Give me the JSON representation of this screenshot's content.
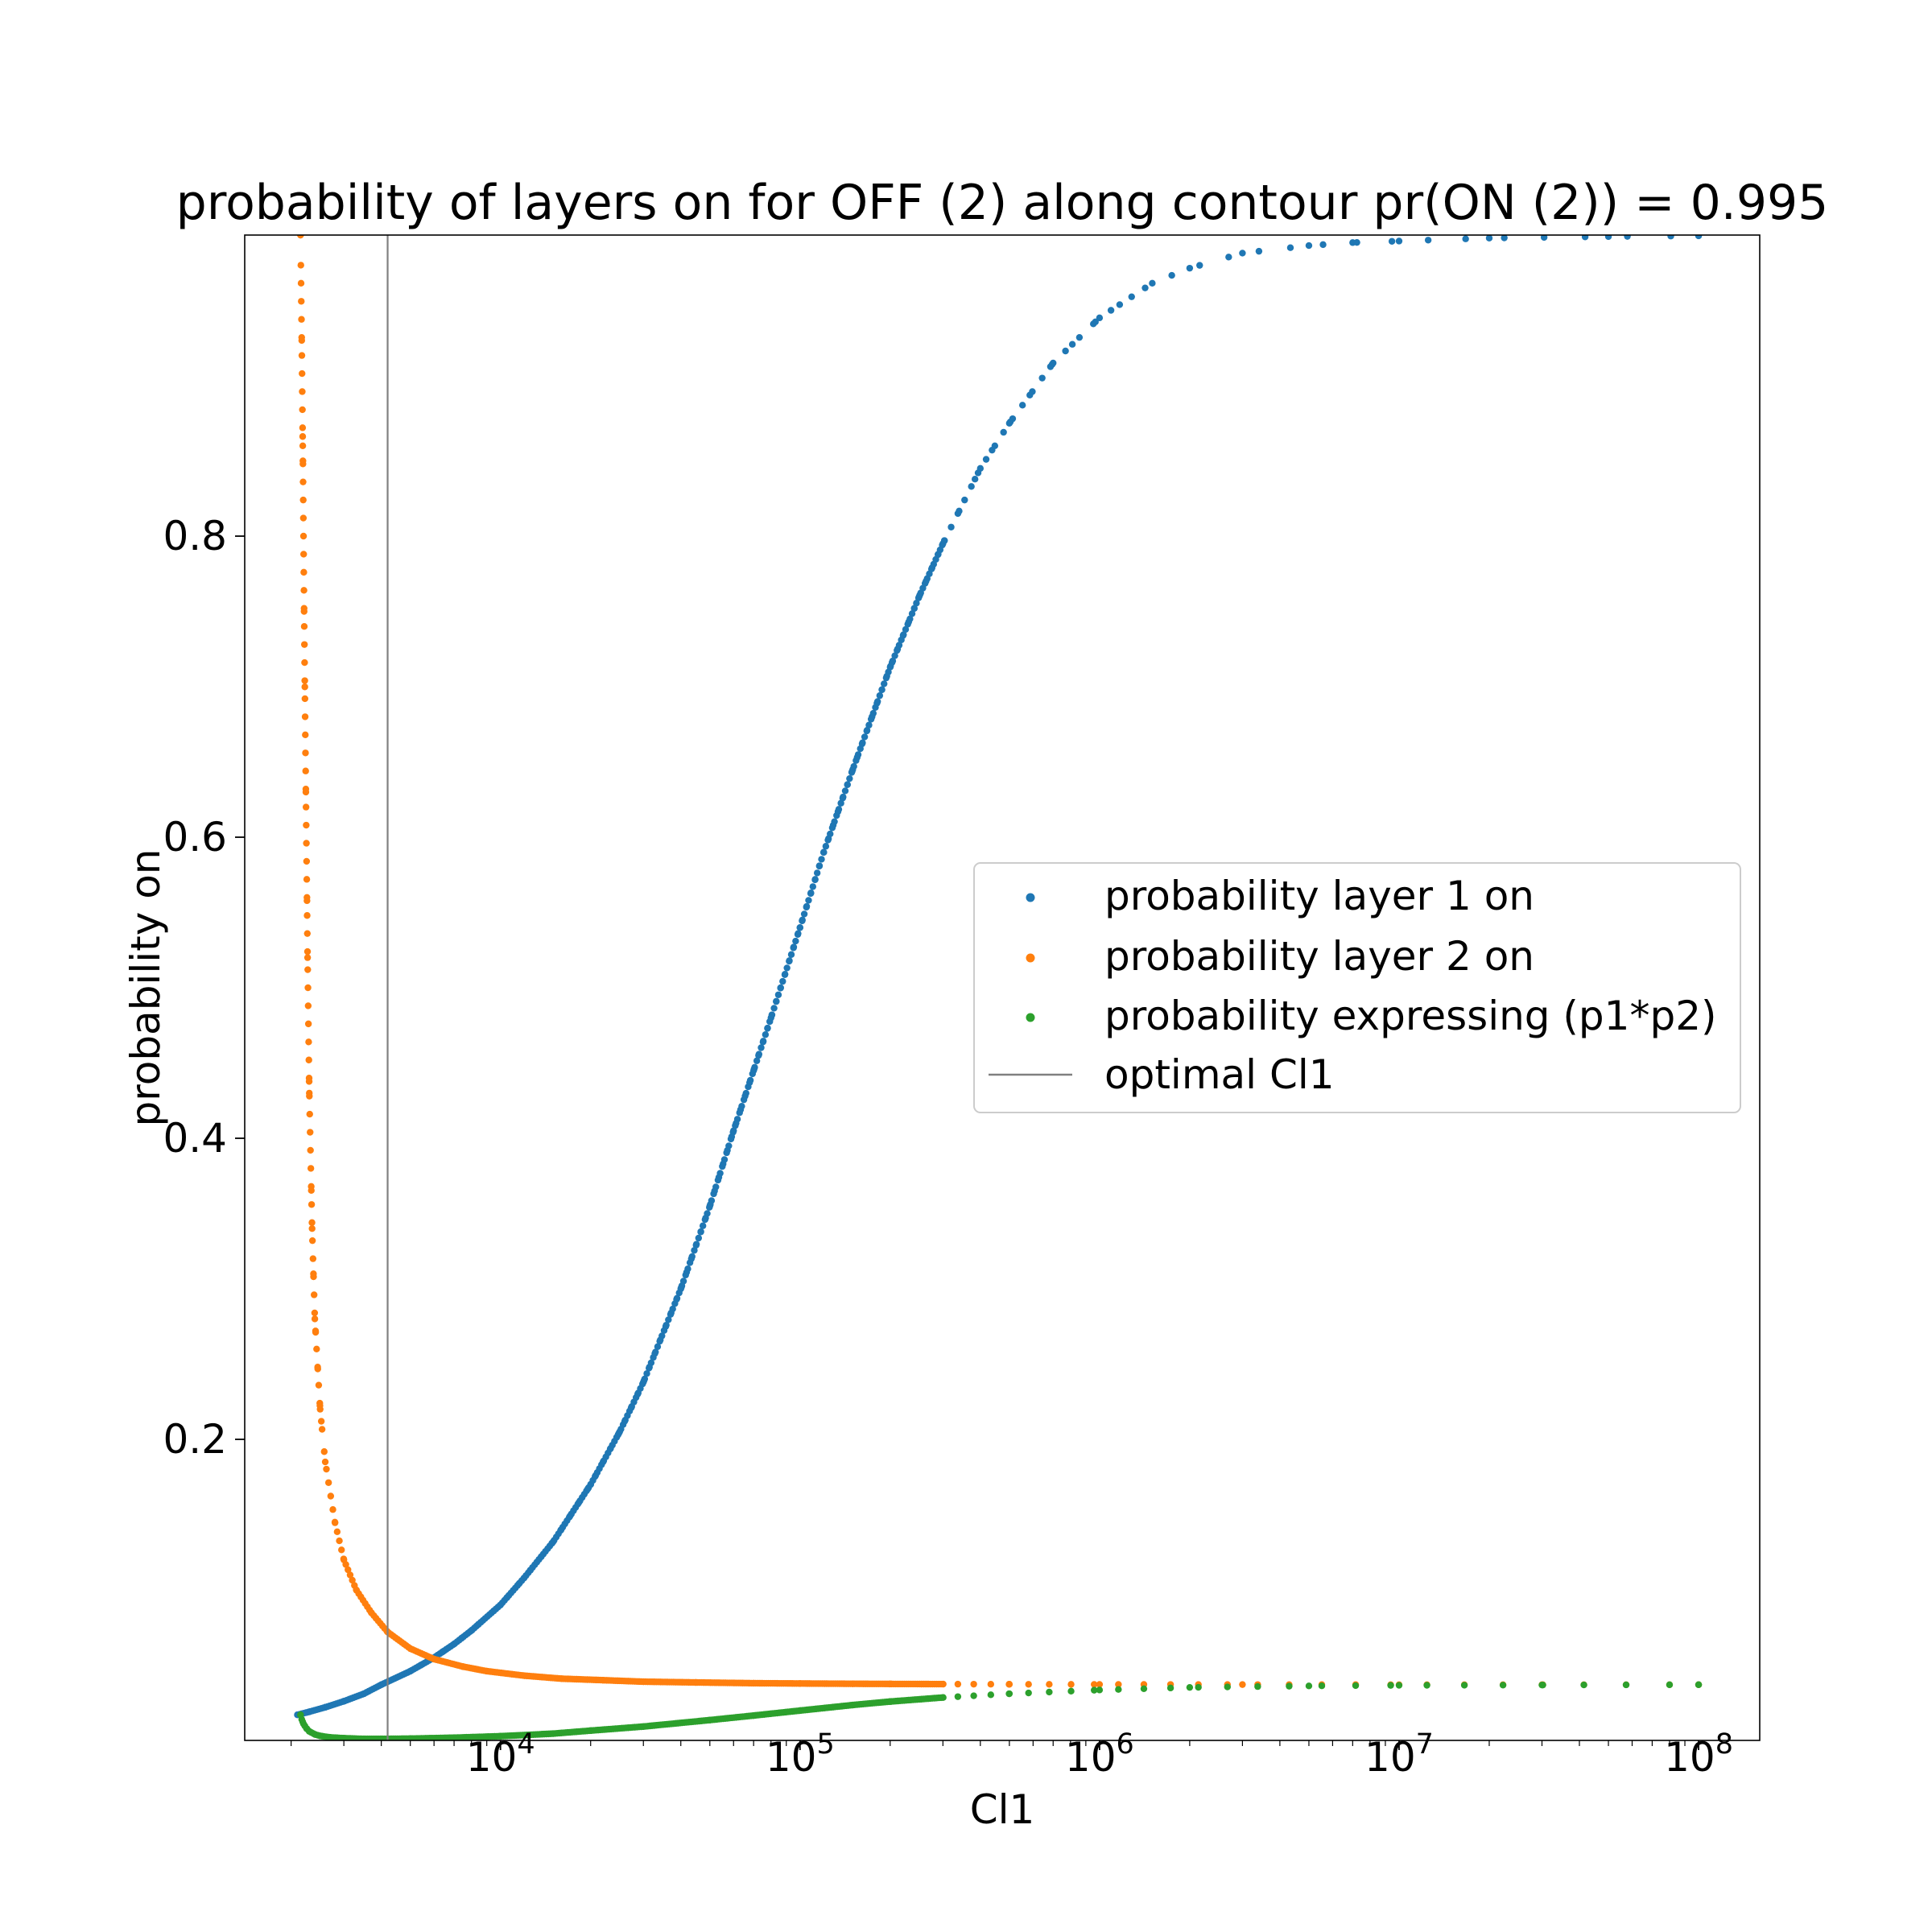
{
  "chart_data": {
    "type": "scatter",
    "title": "probability of layers on for OFF (2) along contour pr(ON (2)) = 0.995",
    "xlabel": "Cl1",
    "ylabel": "probability on",
    "xscale": "log",
    "xlim": [
      1400,
      160000000
    ],
    "ylim": [
      0.0,
      1.0
    ],
    "x_ticks": [
      {
        "value": 10000,
        "base": "10",
        "exp": "4"
      },
      {
        "value": 100000,
        "base": "10",
        "exp": "5"
      },
      {
        "value": 1000000,
        "base": "10",
        "exp": "6"
      },
      {
        "value": 10000000,
        "base": "10",
        "exp": "7"
      },
      {
        "value": 100000000,
        "base": "10",
        "exp": "8"
      }
    ],
    "y_ticks": [
      {
        "value": 0.2,
        "label": "0.2"
      },
      {
        "value": 0.4,
        "label": "0.4"
      },
      {
        "value": 0.6,
        "label": "0.6"
      },
      {
        "value": 0.8,
        "label": "0.8"
      }
    ],
    "grid": false,
    "legend_position": "center-right",
    "series": [
      {
        "name": "probability layer 1 on",
        "color": "#1f77b4",
        "x": [
          2100,
          2300,
          2600,
          3000,
          3500,
          4000,
          5000,
          6000,
          7000,
          8000,
          10000,
          12000,
          15000,
          20000,
          25000,
          30000,
          40000,
          50000,
          60000,
          70000,
          80000,
          100000,
          120000,
          150000,
          200000,
          250000,
          300000,
          400000,
          500000,
          700000,
          1000000,
          1500000,
          2000000,
          3000000,
          5000000,
          7000000,
          10000000,
          20000000,
          50000000,
          100000000
        ],
        "y": [
          0.017,
          0.019,
          0.022,
          0.026,
          0.031,
          0.037,
          0.046,
          0.055,
          0.064,
          0.073,
          0.09,
          0.108,
          0.132,
          0.17,
          0.205,
          0.238,
          0.3,
          0.355,
          0.405,
          0.445,
          0.48,
          0.54,
          0.59,
          0.645,
          0.713,
          0.76,
          0.795,
          0.845,
          0.875,
          0.915,
          0.945,
          0.968,
          0.978,
          0.988,
          0.993,
          0.995,
          0.996,
          0.998,
          0.999,
          0.9995
        ]
      },
      {
        "name": "probability layer 2 on",
        "color": "#ff7f0e",
        "x": [
          2150,
          2170,
          2190,
          2210,
          2240,
          2270,
          2300,
          2350,
          2400,
          2500,
          2600,
          2800,
          3000,
          3300,
          3700,
          4200,
          5000,
          6000,
          7500,
          9000,
          12000,
          16000,
          22000,
          30000,
          45000,
          70000,
          100000,
          150000,
          200000,
          300000,
          500000,
          1000000,
          3000000,
          10000000,
          30000000,
          100000000
        ],
        "y": [
          1.0,
          0.93,
          0.85,
          0.75,
          0.63,
          0.52,
          0.43,
          0.34,
          0.28,
          0.22,
          0.185,
          0.145,
          0.12,
          0.1,
          0.085,
          0.072,
          0.061,
          0.054,
          0.049,
          0.046,
          0.043,
          0.041,
          0.04,
          0.039,
          0.0385,
          0.038,
          0.0378,
          0.0376,
          0.0375,
          0.0374,
          0.0373,
          0.0372,
          0.0371,
          0.037,
          0.037,
          0.037
        ]
      },
      {
        "name": "probability expressing (p1*p2)",
        "color": "#2ca02c",
        "x": [
          2150,
          2170,
          2200,
          2250,
          2300,
          2400,
          2500,
          2700,
          3000,
          3500,
          4000,
          5000,
          7000,
          10000,
          15000,
          20000,
          30000,
          50000,
          70000,
          100000,
          150000,
          200000,
          300000,
          500000,
          1000000,
          2000000,
          5000000,
          10000000,
          30000000,
          100000000
        ],
        "y": [
          0.017,
          0.014,
          0.011,
          0.008,
          0.006,
          0.004,
          0.003,
          0.002,
          0.0015,
          0.001,
          0.001,
          0.0012,
          0.0018,
          0.0028,
          0.0045,
          0.0065,
          0.0092,
          0.0135,
          0.0165,
          0.0198,
          0.0235,
          0.0258,
          0.0285,
          0.031,
          0.0335,
          0.0352,
          0.0362,
          0.0366,
          0.0368,
          0.037
        ]
      }
    ],
    "reference_line": {
      "name": "optimal Cl1",
      "color": "#808080",
      "x": 4200
    }
  }
}
